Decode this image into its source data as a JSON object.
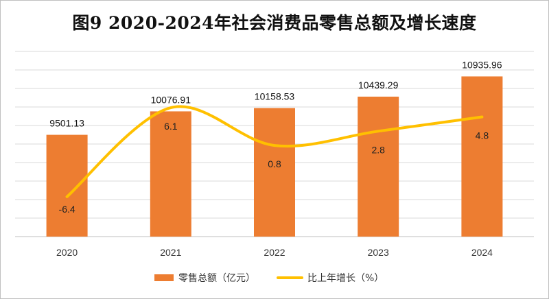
{
  "chart_data": {
    "type": "bar",
    "title": "图9 2020-2024年社会消费品零售总额及增长速度",
    "categories": [
      "2020",
      "2021",
      "2022",
      "2023",
      "2024"
    ],
    "series": [
      {
        "name": "零售总额（亿元）",
        "type": "bar",
        "values": [
          9501.13,
          10076.91,
          10158.53,
          10439.29,
          10935.96
        ],
        "labels": [
          "9501.13",
          "10076.91",
          "10158.53",
          "10439.29",
          "10935.96"
        ],
        "color": "#ed7d31"
      },
      {
        "name": "比上年增长（%）",
        "type": "line",
        "smooth": true,
        "values": [
          -6.4,
          6.1,
          0.8,
          2.8,
          4.8
        ],
        "labels": [
          "-6.4",
          "6.1",
          "0.8",
          "2.8",
          "4.8"
        ],
        "color": "#ffc000"
      }
    ],
    "grid": true,
    "axis_labels_visible": false,
    "legend_position": "bottom"
  }
}
